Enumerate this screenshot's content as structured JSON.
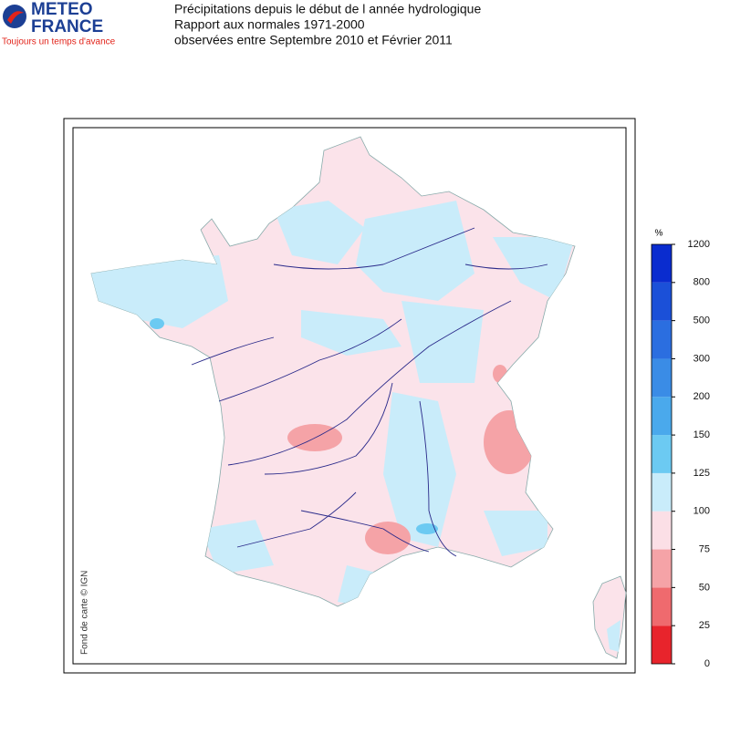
{
  "logo": {
    "line1": "METEO",
    "line2": "FRANCE",
    "tagline": "Toujours un temps d'avance"
  },
  "title": {
    "line1": "Précipitations depuis le début de l année hydrologique",
    "line2": "Rapport aux normales 1971-2000",
    "line3": "observées entre Septembre 2010 et Février 2011"
  },
  "legend": {
    "unit": "%",
    "ticks": [
      0,
      25,
      50,
      75,
      100,
      125,
      150,
      200,
      300,
      500,
      800,
      1200
    ],
    "colors": [
      "#e8242c",
      "#ef6a6e",
      "#f5a3a7",
      "#fbdfe6",
      "#c9ecfa",
      "#6ccaf2",
      "#4aa9ec",
      "#3a8ce6",
      "#2b6ee0",
      "#1b50d8",
      "#0a2ccf"
    ]
  },
  "credit": "Fond de carte © IGN"
}
